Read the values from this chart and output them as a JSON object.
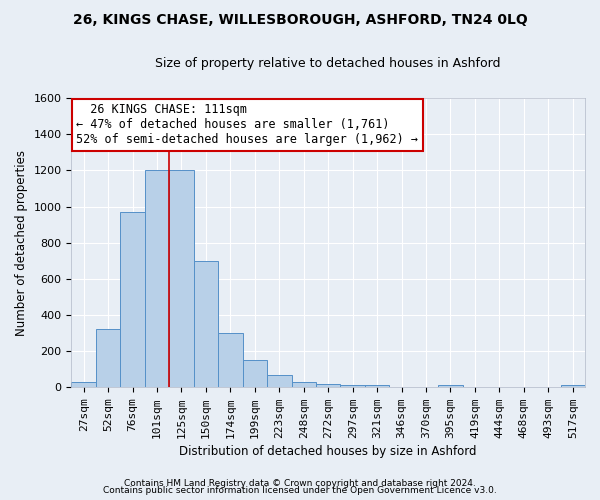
{
  "title": "26, KINGS CHASE, WILLESBOROUGH, ASHFORD, TN24 0LQ",
  "subtitle": "Size of property relative to detached houses in Ashford",
  "xlabel": "Distribution of detached houses by size in Ashford",
  "ylabel": "Number of detached properties",
  "footer_line1": "Contains HM Land Registry data © Crown copyright and database right 2024.",
  "footer_line2": "Contains public sector information licensed under the Open Government Licence v3.0.",
  "bar_labels": [
    "27sqm",
    "52sqm",
    "76sqm",
    "101sqm",
    "125sqm",
    "150sqm",
    "174sqm",
    "199sqm",
    "223sqm",
    "248sqm",
    "272sqm",
    "297sqm",
    "321sqm",
    "346sqm",
    "370sqm",
    "395sqm",
    "419sqm",
    "444sqm",
    "468sqm",
    "493sqm",
    "517sqm"
  ],
  "bar_values": [
    30,
    320,
    970,
    1200,
    1200,
    700,
    300,
    150,
    70,
    30,
    20,
    15,
    12,
    0,
    0,
    12,
    0,
    0,
    0,
    0,
    12
  ],
  "bar_color": "#b8d0e8",
  "bar_edge_color": "#5590c8",
  "ylim": [
    0,
    1600
  ],
  "yticks": [
    0,
    200,
    400,
    600,
    800,
    1000,
    1200,
    1400,
    1600
  ],
  "annotation_title": "26 KINGS CHASE: 111sqm",
  "annotation_line2": "← 47% of detached houses are smaller (1,761)",
  "annotation_line3": "52% of semi-detached houses are larger (1,962) →",
  "vline_color": "#cc0000",
  "annotation_box_facecolor": "#ffffff",
  "annotation_box_edgecolor": "#cc0000",
  "bg_color": "#e8eef5",
  "plot_bg_color": "#e8eef5",
  "grid_color": "#ffffff",
  "title_fontsize": 10,
  "subtitle_fontsize": 9,
  "ylabel_fontsize": 8.5,
  "xlabel_fontsize": 8.5,
  "tick_fontsize": 8,
  "annot_fontsize": 8.5,
  "footer_fontsize": 6.5
}
